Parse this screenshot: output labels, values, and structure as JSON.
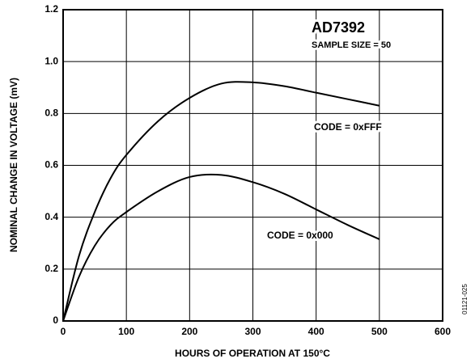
{
  "chart_data": {
    "type": "line",
    "x_label": "HOURS OF OPERATION AT 150°C",
    "y_label": "NOMINAL CHANGE IN VOLTAGE (mV)",
    "annotations": [
      "AD7392",
      "SAMPLE SIZE = 50",
      "01121-025"
    ],
    "x": [
      0,
      25,
      50,
      75,
      100,
      150,
      200,
      250,
      300,
      350,
      400,
      450,
      500
    ],
    "series": [
      {
        "name": "CODE = 0xFFF",
        "color": "#000000",
        "values": [
          0,
          0.25,
          0.42,
          0.55,
          0.64,
          0.77,
          0.86,
          0.915,
          0.92,
          0.905,
          0.88,
          0.855,
          0.83
        ]
      },
      {
        "name": "CODE = 0x000",
        "color": "#000000",
        "values": [
          0,
          0.17,
          0.29,
          0.37,
          0.42,
          0.5,
          0.555,
          0.563,
          0.535,
          0.49,
          0.43,
          0.37,
          0.315
        ]
      }
    ],
    "xlim": [
      0,
      600
    ],
    "xticks": [
      0,
      100,
      200,
      300,
      400,
      500,
      600
    ],
    "ylim": [
      0,
      1.2
    ],
    "yticks": [
      0,
      0.2,
      0.4,
      0.6,
      0.8,
      {
        "value": 1,
        "label": "1.0"
      },
      1.2
    ],
    "grid": true
  }
}
